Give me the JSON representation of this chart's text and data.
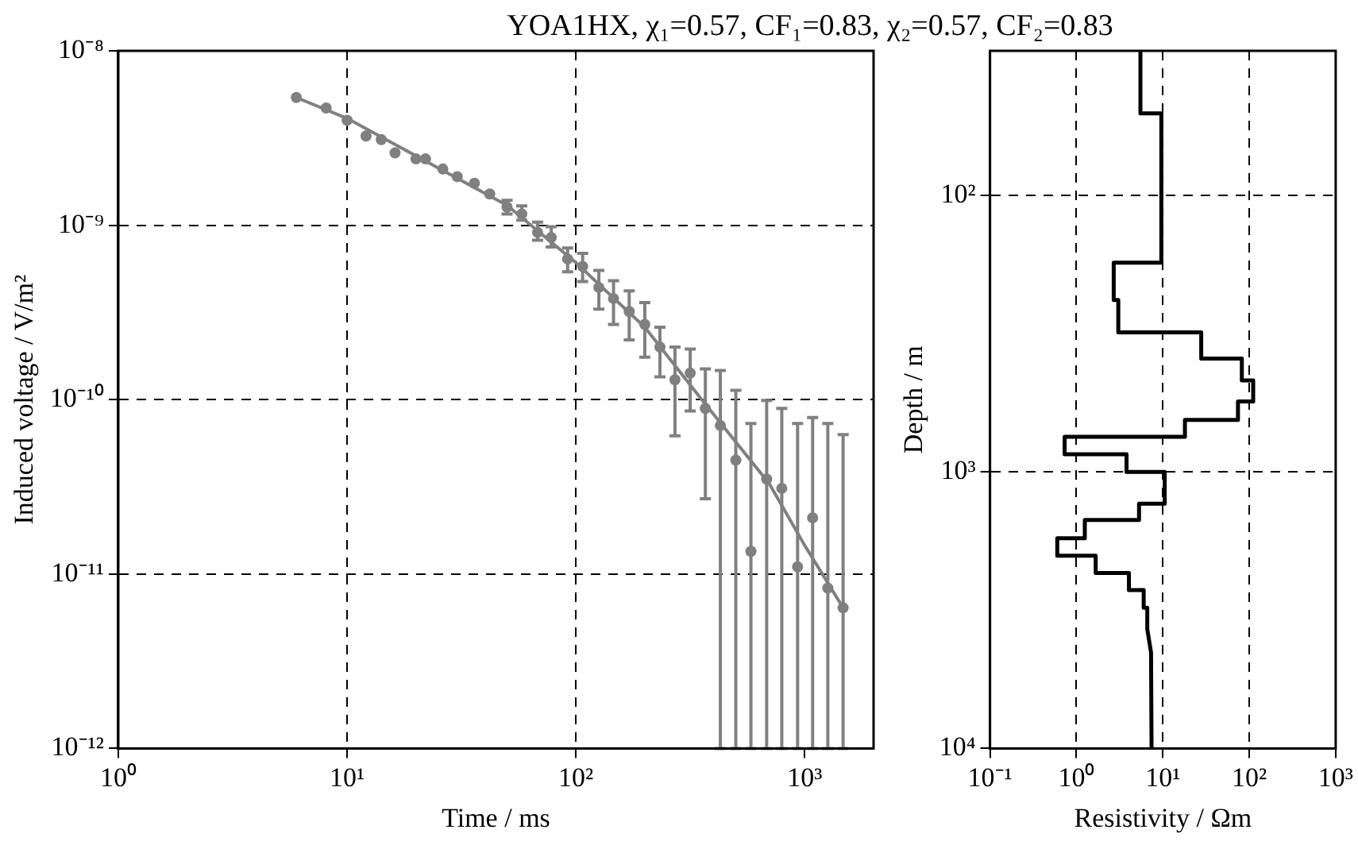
{
  "chart_data": [
    {
      "type": "scatter",
      "title": "YOA1HX,  χ₁=0.57,  CF₁=0.83,  χ₂=0.57,  CF₂=0.83",
      "xlabel": "Time / ms",
      "ylabel": "Induced voltage / V/m²",
      "log": "xy",
      "grid": true,
      "xlim": [
        1,
        2000
      ],
      "ylim": [
        1e-12,
        1e-08
      ],
      "xticks": [
        {
          "value": 1,
          "label": "10⁰"
        },
        {
          "value": 10,
          "label": "10¹"
        },
        {
          "value": 100,
          "label": "10²"
        },
        {
          "value": 1000,
          "label": "10³"
        }
      ],
      "yticks": [
        {
          "value": 1e-12,
          "label": "10⁻¹²"
        },
        {
          "value": 1e-11,
          "label": "10⁻¹¹"
        },
        {
          "value": 1e-10,
          "label": "10⁻¹⁰"
        },
        {
          "value": 1e-09,
          "label": "10⁻⁹"
        },
        {
          "value": 1e-08,
          "label": "10⁻⁸"
        }
      ],
      "series": [
        {
          "marker": "circle",
          "color": "#808080",
          "x": [
            6.0,
            8.1,
            10.0,
            12.1,
            14.1,
            16.2,
            20.0,
            22,
            26.2,
            30.3,
            36,
            42,
            50,
            58,
            68,
            78,
            92,
            107,
            126,
            146,
            171,
            200,
            233,
            271,
            316,
            368,
            428,
            500,
            582,
            682,
            794,
            931,
            1083,
            1262,
            1472
          ],
          "values": [
            5.4e-09,
            4.7e-09,
            4e-09,
            3.25e-09,
            3.1e-09,
            2.6e-09,
            2.4e-09,
            2.4e-09,
            2.1e-09,
            1.9e-09,
            1.74e-09,
            1.51e-09,
            1.27e-09,
            1.16e-09,
            9.1e-10,
            8.5e-10,
            6.4e-10,
            5.8e-10,
            4.4e-10,
            3.8e-10,
            3.2e-10,
            2.7e-10,
            2e-10,
            1.3e-10,
            1.42e-10,
            8.9e-11,
            7.1e-11,
            4.5e-11,
            1.35e-11,
            3.5e-11,
            3.1e-11,
            1.1e-11,
            2.1e-11,
            8.3e-12,
            6.4e-12
          ],
          "errors": [
            null,
            null,
            null,
            null,
            null,
            null,
            null,
            null,
            null,
            null,
            null,
            null,
            [
              1.16e-09,
              1.39e-09
            ],
            [
              1.07e-09,
              1.29e-09
            ],
            [
              8.2e-10,
              1.04e-09
            ],
            [
              7.5e-10,
              9.8e-10
            ],
            [
              5.4e-10,
              7.4e-10
            ],
            [
              4.75e-10,
              6.9e-10
            ],
            [
              3.3e-10,
              5.5e-10
            ],
            [
              2.7e-10,
              4.8e-10
            ],
            [
              2.2e-10,
              4.2e-10
            ],
            [
              1.75e-10,
              3.6e-10
            ],
            [
              1.35e-10,
              2.6e-10
            ],
            [
              6.2e-11,
              2e-10
            ],
            [
              8.6e-11,
              1.95e-10
            ],
            [
              2.7e-11,
              1.5e-10
            ],
            [
              1e-12,
              1.47e-10
            ],
            [
              1e-12,
              1.13e-10
            ],
            [
              1e-12,
              7.3e-11
            ],
            [
              1e-12,
              9.9e-11
            ],
            [
              1e-12,
              8.9e-11
            ],
            [
              1e-12,
              7.3e-11
            ],
            [
              1e-12,
              7.9e-11
            ],
            [
              1e-12,
              7.3e-11
            ],
            [
              1e-12,
              6.3e-11
            ]
          ]
        },
        {
          "type": "line",
          "marker": "none",
          "color": "#808080",
          "x": [
            6,
            10,
            20,
            50,
            100,
            200,
            355,
            700,
            1000,
            1472
          ],
          "values": [
            5.4e-09,
            4.1e-09,
            2.5e-09,
            1.3e-09,
            6.1e-10,
            2.6e-10,
            1e-10,
            3.3e-11,
            1.46e-11,
            6.4e-12
          ]
        }
      ]
    },
    {
      "type": "line",
      "xlabel": "Resistivity / Ωm",
      "ylabel": "Depth / m",
      "log": "xy",
      "grid": true,
      "xlim": [
        0.1,
        1000
      ],
      "ylim": [
        10000,
        30
      ],
      "xticks": [
        {
          "value": 0.1,
          "label": "10⁻¹"
        },
        {
          "value": 1,
          "label": "10⁰"
        },
        {
          "value": 10,
          "label": "10¹"
        },
        {
          "value": 100,
          "label": "10²"
        },
        {
          "value": 1000,
          "label": "10³"
        }
      ],
      "yticks": [
        {
          "value": 100,
          "label": "10²"
        },
        {
          "value": 1000,
          "label": "10³"
        },
        {
          "value": 10000,
          "label": "10⁴"
        }
      ],
      "series": [
        {
          "marker": "none",
          "color": "#000000",
          "x": [
            5.5,
            5.5,
            9.6,
            9.6,
            2.7,
            2.7,
            3.05,
            3.05,
            27.8,
            27.8,
            82,
            82,
            111,
            111,
            74,
            74,
            18,
            18,
            0.73,
            0.73,
            3.8,
            3.8,
            10.5,
            10.5,
            5.3,
            5.3,
            1.25,
            1.25,
            0.6,
            0.6,
            1.67,
            1.67,
            4.05,
            4.05,
            6.0,
            6.0,
            6.6,
            6.6,
            7.3,
            7.4
          ],
          "values": [
            30,
            50.5,
            50.5,
            175,
            175,
            239,
            239,
            313,
            313,
            389,
            389,
            467,
            467,
            556,
            556,
            649,
            649,
            747,
            747,
            864,
            864,
            1000,
            1000,
            1303,
            1303,
            1493,
            1493,
            1737,
            1737,
            2010,
            2010,
            2322,
            2322,
            2677,
            2677,
            3097,
            3097,
            3700,
            4500,
            10000
          ]
        }
      ]
    }
  ]
}
